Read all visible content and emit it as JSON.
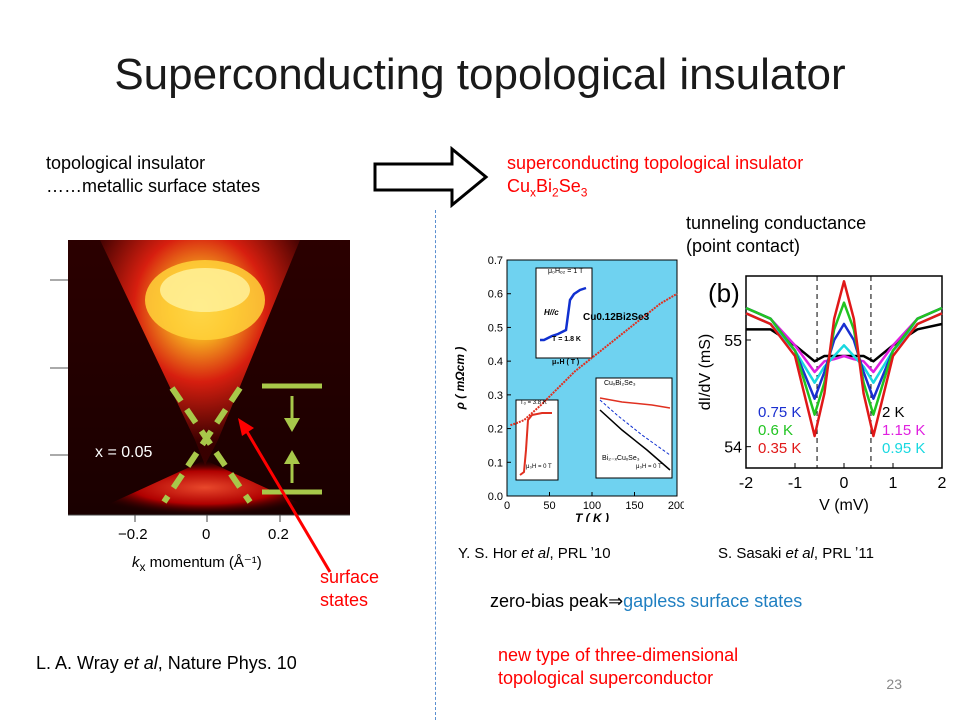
{
  "slide": {
    "title": "Superconducting topological insulator",
    "page_number": "23"
  },
  "left_text": {
    "line1": "topological insulator",
    "line2": "……metallic surface states"
  },
  "right_text": {
    "line1": "superconducting topological insulator",
    "formula_cu": "Cu",
    "formula_x": "x",
    "formula_bi": "Bi",
    "formula_2": "2",
    "formula_se": "Se",
    "formula_3": "3"
  },
  "tunneling_label": {
    "line1": "tunneling conductance",
    "line2": "(point contact)"
  },
  "arpes_figure": {
    "x_value_label": "x = 0.05",
    "tick_labels": [
      "−0.2",
      "0",
      "0.2"
    ],
    "axis_label_main": "k",
    "axis_label_sub": "x",
    "axis_label_rest": " momentum (Å⁻¹)",
    "surface_states_line1": "surface",
    "surface_states_line2": "states",
    "citation_author": "L. A. Wray ",
    "citation_etal": "et al",
    "citation_journal": ", Nature Phys. 10"
  },
  "resistivity_figure": {
    "inset1_field": "μ₀Hₒ₂ = 1 T",
    "inset1_dir": "H//c",
    "inset1_temp": "T = 1.8 K",
    "inset1_xlabel": "μ₀H ( T )",
    "inset2_temp": "Tₒ = 3.8 K",
    "inset2_field": "μ₀H = 0 T",
    "inset3_label1": "CuₓBi₂Se₃",
    "inset3_label2": "Bi₂₋ₓCuₓSe₃",
    "inset3_field": "μ₀H = 0 T",
    "sample_label": "Cu0.12Bi2Se3",
    "citation_author": "Y. S. Hor ",
    "citation_etal": "et al",
    "citation_journal": ", PRL ʼ10"
  },
  "conductance_figure": {
    "panel": "(b)",
    "legend_left": [
      "0.75 K",
      "0.6 K",
      "0.35 K"
    ],
    "legend_right": [
      "2 K",
      "1.15 K",
      "0.95 K"
    ],
    "citation_author": "S. Sasaki ",
    "citation_etal": "et al",
    "citation_journal": ", PRL ʼ11"
  },
  "conclusions": {
    "zero_bias": "zero-bias peak",
    "implies": "⇒",
    "gapless": "gapless surface states",
    "new_type_line1": "new type of three-dimensional",
    "new_type_line2": "topological superconductor"
  },
  "chart_data": [
    {
      "type": "line",
      "ylabel": "ρ ( mΩcm )",
      "xlabel": "T ( K )",
      "xlim": [
        0,
        200
      ],
      "ylim": [
        0.0,
        0.7
      ],
      "xticks": [
        0,
        50,
        100,
        150,
        200
      ],
      "yticks": [
        0.0,
        0.1,
        0.2,
        0.3,
        0.4,
        0.5,
        0.6,
        0.7
      ],
      "series": [
        {
          "name": "Cu0.12Bi2Se3",
          "x": [
            4,
            10,
            20,
            40,
            60,
            80,
            100,
            120,
            140,
            160,
            180,
            200
          ],
          "y": [
            0.21,
            0.215,
            0.225,
            0.27,
            0.32,
            0.37,
            0.41,
            0.45,
            0.49,
            0.53,
            0.57,
            0.6
          ]
        }
      ]
    },
    {
      "type": "line",
      "ylabel": "dI/dV  (mS)",
      "xlabel": "V (mV)",
      "xlim": [
        -2,
        2
      ],
      "ylim": [
        53.8,
        55.6
      ],
      "xticks": [
        -2,
        -1,
        0,
        1,
        2
      ],
      "yticks": [
        54,
        55
      ],
      "series": [
        {
          "name": "2 K",
          "x": [
            -2,
            -1.5,
            -1,
            -0.6,
            -0.4,
            -0.2,
            0,
            0.2,
            0.4,
            0.6,
            1,
            1.5,
            2
          ],
          "y": [
            55.1,
            55.1,
            54.95,
            54.8,
            54.85,
            54.85,
            54.85,
            54.85,
            54.85,
            54.8,
            54.95,
            55.1,
            55.15
          ]
        },
        {
          "name": "1.15 K",
          "x": [
            -2,
            -1.5,
            -1,
            -0.6,
            -0.4,
            -0.2,
            0,
            0.2,
            0.4,
            0.6,
            1,
            1.5,
            2
          ],
          "y": [
            55.3,
            55.2,
            54.95,
            54.7,
            54.8,
            54.82,
            54.85,
            54.82,
            54.8,
            54.7,
            54.95,
            55.2,
            55.3
          ]
        },
        {
          "name": "0.95 K",
          "x": [
            -2,
            -1.5,
            -1,
            -0.6,
            -0.4,
            -0.2,
            0,
            0.2,
            0.4,
            0.6,
            1,
            1.5,
            2
          ],
          "y": [
            55.25,
            55.15,
            54.9,
            54.6,
            54.75,
            54.85,
            54.95,
            54.85,
            54.75,
            54.6,
            54.9,
            55.15,
            55.25
          ]
        },
        {
          "name": "0.75 K",
          "x": [
            -2,
            -1.5,
            -1,
            -0.6,
            -0.4,
            -0.2,
            0,
            0.2,
            0.4,
            0.6,
            1,
            1.5,
            2
          ],
          "y": [
            55.3,
            55.2,
            54.9,
            54.45,
            54.7,
            55.0,
            55.15,
            55.0,
            54.7,
            54.45,
            54.9,
            55.2,
            55.3
          ]
        },
        {
          "name": "0.6 K",
          "x": [
            -2,
            -1.5,
            -1,
            -0.6,
            -0.4,
            -0.2,
            0,
            0.2,
            0.4,
            0.6,
            1,
            1.5,
            2
          ],
          "y": [
            55.3,
            55.2,
            54.9,
            54.3,
            54.6,
            55.1,
            55.35,
            55.1,
            54.6,
            54.3,
            54.9,
            55.2,
            55.3
          ]
        },
        {
          "name": "0.35 K",
          "x": [
            -2,
            -1.5,
            -1,
            -0.6,
            -0.4,
            -0.2,
            0,
            0.2,
            0.4,
            0.6,
            1,
            1.5,
            2
          ],
          "y": [
            55.25,
            55.15,
            54.85,
            54.1,
            54.5,
            55.2,
            55.55,
            55.2,
            54.5,
            54.1,
            54.85,
            55.15,
            55.25
          ]
        }
      ]
    }
  ]
}
